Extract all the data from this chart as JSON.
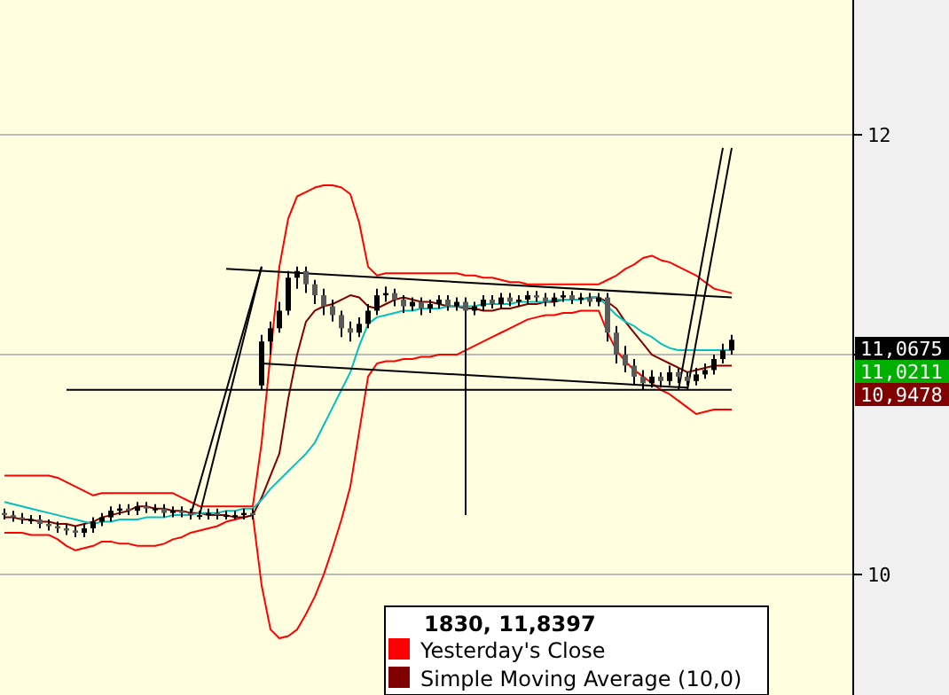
{
  "chart_data": {
    "type": "candlestick",
    "annotations": [
      "1830, 11,8397",
      "11,0675",
      "11,0211",
      "10,9478"
    ],
    "categories": [
      null,
      null,
      null,
      null,
      null,
      null,
      null,
      null,
      null,
      null,
      null,
      null,
      null,
      null,
      null,
      null,
      null,
      null,
      null,
      null,
      null,
      null,
      null,
      null,
      null,
      null,
      null,
      null,
      null,
      null,
      null,
      null,
      null,
      null,
      null,
      null,
      null,
      null,
      null,
      null,
      null,
      null,
      null,
      null,
      null,
      null,
      null,
      null,
      null,
      null,
      null,
      null,
      null,
      null,
      null,
      null,
      null,
      null,
      null,
      null,
      null,
      null,
      null,
      null,
      null,
      null,
      null,
      null,
      null,
      null,
      null,
      null,
      null,
      null,
      null,
      null,
      null,
      null,
      null,
      null,
      null,
      null,
      null
    ],
    "ohlc": [
      [
        10.28,
        10.3,
        10.25,
        10.27
      ],
      [
        10.27,
        10.29,
        10.24,
        10.26
      ],
      [
        10.26,
        10.28,
        10.23,
        10.25
      ],
      [
        10.25,
        10.27,
        10.23,
        10.25
      ],
      [
        10.25,
        10.27,
        10.21,
        10.23
      ],
      [
        10.23,
        10.25,
        10.2,
        10.22
      ],
      [
        10.22,
        10.24,
        10.19,
        10.21
      ],
      [
        10.21,
        10.23,
        10.18,
        10.2
      ],
      [
        10.2,
        10.22,
        10.17,
        10.19
      ],
      [
        10.19,
        10.23,
        10.17,
        10.21
      ],
      [
        10.21,
        10.26,
        10.19,
        10.24
      ],
      [
        10.24,
        10.28,
        10.22,
        10.26
      ],
      [
        10.26,
        10.31,
        10.24,
        10.29
      ],
      [
        10.29,
        10.32,
        10.27,
        10.3
      ],
      [
        10.3,
        10.32,
        10.27,
        10.29
      ],
      [
        10.29,
        10.33,
        10.27,
        10.31
      ],
      [
        10.31,
        10.33,
        10.28,
        10.3
      ],
      [
        10.3,
        10.32,
        10.28,
        10.3
      ],
      [
        10.3,
        10.32,
        10.26,
        10.28
      ],
      [
        10.28,
        10.31,
        10.26,
        10.29
      ],
      [
        10.29,
        10.31,
        10.26,
        10.28
      ],
      [
        10.28,
        10.3,
        10.25,
        10.27
      ],
      [
        10.27,
        10.29,
        10.25,
        10.27
      ],
      [
        10.27,
        10.3,
        10.25,
        10.28
      ],
      [
        10.28,
        10.3,
        10.25,
        10.27
      ],
      [
        10.27,
        10.29,
        10.25,
        10.27
      ],
      [
        10.27,
        10.29,
        10.25,
        10.27
      ],
      [
        10.27,
        10.3,
        10.25,
        10.28
      ],
      [
        10.28,
        10.3,
        10.25,
        10.27
      ],
      [
        10.86,
        11.09,
        10.84,
        11.06
      ],
      [
        11.06,
        11.15,
        11.0,
        11.12
      ],
      [
        11.12,
        11.24,
        11.1,
        11.2
      ],
      [
        11.2,
        11.38,
        11.18,
        11.35
      ],
      [
        11.35,
        11.4,
        11.3,
        11.38
      ],
      [
        11.38,
        11.4,
        11.28,
        11.32
      ],
      [
        11.32,
        11.34,
        11.23,
        11.27
      ],
      [
        11.27,
        11.3,
        11.18,
        11.22
      ],
      [
        11.22,
        11.25,
        11.15,
        11.18
      ],
      [
        11.18,
        11.2,
        11.08,
        11.12
      ],
      [
        11.12,
        11.15,
        11.06,
        11.1
      ],
      [
        11.1,
        11.17,
        11.08,
        11.14
      ],
      [
        11.14,
        11.23,
        11.12,
        11.2
      ],
      [
        11.2,
        11.3,
        11.18,
        11.27
      ],
      [
        11.27,
        11.31,
        11.24,
        11.28
      ],
      [
        11.28,
        11.3,
        11.22,
        11.25
      ],
      [
        11.25,
        11.27,
        11.19,
        11.22
      ],
      [
        11.22,
        11.26,
        11.2,
        11.24
      ],
      [
        11.24,
        11.26,
        11.18,
        11.21
      ],
      [
        11.21,
        11.25,
        11.19,
        11.23
      ],
      [
        11.23,
        11.27,
        11.21,
        11.25
      ],
      [
        11.25,
        11.27,
        11.2,
        11.22
      ],
      [
        11.22,
        11.26,
        11.2,
        11.24
      ],
      [
        11.24,
        11.26,
        10.27,
        11.2
      ],
      [
        11.2,
        11.24,
        11.18,
        11.22
      ],
      [
        11.22,
        11.27,
        11.2,
        11.25
      ],
      [
        11.25,
        11.27,
        11.21,
        11.23
      ],
      [
        11.23,
        11.28,
        11.21,
        11.26
      ],
      [
        11.26,
        11.28,
        11.22,
        11.24
      ],
      [
        11.24,
        11.27,
        11.22,
        11.25
      ],
      [
        11.25,
        11.29,
        11.23,
        11.27
      ],
      [
        11.27,
        11.29,
        11.24,
        11.26
      ],
      [
        11.26,
        11.28,
        11.22,
        11.24
      ],
      [
        11.24,
        11.28,
        11.22,
        11.26
      ],
      [
        11.26,
        11.29,
        11.24,
        11.27
      ],
      [
        11.27,
        11.29,
        11.23,
        11.25
      ],
      [
        11.25,
        11.28,
        11.23,
        11.26
      ],
      [
        11.26,
        11.28,
        11.22,
        11.24
      ],
      [
        11.24,
        11.28,
        11.22,
        11.26
      ],
      [
        11.26,
        11.28,
        11.06,
        11.1
      ],
      [
        11.1,
        11.13,
        10.96,
        11.0
      ],
      [
        11.0,
        11.04,
        10.92,
        10.95
      ],
      [
        10.95,
        10.98,
        10.86,
        10.9
      ],
      [
        10.9,
        10.93,
        10.84,
        10.87
      ],
      [
        10.87,
        10.93,
        10.85,
        10.9
      ],
      [
        10.9,
        10.92,
        10.85,
        10.88
      ],
      [
        10.88,
        10.95,
        10.86,
        10.92
      ],
      [
        10.92,
        10.94,
        10.87,
        10.9
      ],
      [
        10.9,
        10.92,
        10.86,
        10.88
      ],
      [
        10.88,
        10.94,
        10.86,
        10.91
      ],
      [
        10.91,
        10.96,
        10.89,
        10.93
      ],
      [
        10.93,
        11.0,
        10.91,
        10.98
      ],
      [
        10.98,
        11.05,
        10.96,
        11.02
      ],
      [
        11.02,
        11.09,
        11.0,
        11.0675
      ]
    ],
    "series": [
      {
        "type": "line",
        "name": "Yesterday's Close",
        "color": "#ff0000",
        "values": [
          10.45,
          10.45,
          10.45,
          10.45,
          10.45,
          10.45,
          10.44,
          10.42,
          10.4,
          10.38,
          10.36,
          10.37,
          10.37,
          10.37,
          10.37,
          10.37,
          10.37,
          10.37,
          10.37,
          10.37,
          10.35,
          10.33,
          10.31,
          10.31,
          10.31,
          10.31,
          10.31,
          10.31,
          10.31,
          10.6,
          11.0,
          11.4,
          11.62,
          11.72,
          11.74,
          11.76,
          11.77,
          11.77,
          11.76,
          11.73,
          11.6,
          11.4,
          11.36,
          11.37,
          11.37,
          11.37,
          11.37,
          11.37,
          11.37,
          11.37,
          11.37,
          11.37,
          11.36,
          11.36,
          11.35,
          11.35,
          11.34,
          11.33,
          11.33,
          11.32,
          11.32,
          11.32,
          11.32,
          11.32,
          11.32,
          11.32,
          11.32,
          11.32,
          11.34,
          11.36,
          11.39,
          11.41,
          11.44,
          11.45,
          11.43,
          11.42,
          11.4,
          11.38,
          11.36,
          11.33,
          11.3,
          11.29,
          11.28
        ]
      },
      {
        "type": "line",
        "color": "#ff0000",
        "values": [
          10.19,
          10.19,
          10.19,
          10.18,
          10.18,
          10.18,
          10.16,
          10.13,
          10.11,
          10.12,
          10.13,
          10.15,
          10.15,
          10.14,
          10.14,
          10.13,
          10.13,
          10.13,
          10.14,
          10.16,
          10.17,
          10.19,
          10.2,
          10.21,
          10.22,
          10.24,
          10.25,
          10.26,
          10.27,
          9.95,
          9.75,
          9.71,
          9.72,
          9.75,
          9.82,
          9.9,
          10.0,
          10.12,
          10.25,
          10.4,
          10.65,
          10.9,
          10.96,
          10.97,
          10.97,
          10.98,
          10.98,
          10.99,
          10.99,
          11.0,
          11.0,
          11.0,
          11.02,
          11.04,
          11.06,
          11.08,
          11.1,
          11.12,
          11.14,
          11.16,
          11.17,
          11.18,
          11.18,
          11.19,
          11.19,
          11.2,
          11.2,
          11.2,
          11.1,
          11.02,
          10.97,
          10.93,
          10.9,
          10.87,
          10.84,
          10.82,
          10.79,
          10.76,
          10.73,
          10.74,
          10.75,
          10.75,
          10.75
        ]
      },
      {
        "type": "line",
        "name": "Simple Moving Average (10,0)",
        "color": "#800000",
        "values": [
          10.26,
          10.26,
          10.25,
          10.25,
          10.24,
          10.24,
          10.23,
          10.23,
          10.22,
          10.23,
          10.24,
          10.26,
          10.27,
          10.28,
          10.29,
          10.31,
          10.31,
          10.3,
          10.3,
          10.29,
          10.29,
          10.28,
          10.28,
          10.27,
          10.27,
          10.27,
          10.26,
          10.26,
          10.27,
          10.35,
          10.45,
          10.55,
          10.8,
          11.0,
          11.15,
          11.2,
          11.22,
          11.23,
          11.25,
          11.27,
          11.26,
          11.22,
          11.21,
          11.23,
          11.25,
          11.26,
          11.25,
          11.24,
          11.24,
          11.23,
          11.22,
          11.22,
          11.21,
          11.21,
          11.2,
          11.2,
          11.21,
          11.21,
          11.22,
          11.23,
          11.23,
          11.24,
          11.24,
          11.25,
          11.25,
          11.25,
          11.26,
          11.26,
          11.24,
          11.21,
          11.15,
          11.1,
          11.05,
          11.0,
          10.98,
          10.96,
          10.94,
          10.92,
          10.93,
          10.94,
          10.95,
          10.95,
          10.95
        ]
      },
      {
        "type": "line",
        "color": "#00c0c0",
        "values": [
          10.33,
          10.32,
          10.31,
          10.3,
          10.29,
          10.28,
          10.27,
          10.26,
          10.25,
          10.24,
          10.23,
          10.24,
          10.24,
          10.25,
          10.25,
          10.25,
          10.26,
          10.26,
          10.26,
          10.27,
          10.27,
          10.27,
          10.28,
          10.28,
          10.28,
          10.29,
          10.29,
          10.3,
          10.3,
          10.34,
          10.39,
          10.43,
          10.47,
          10.51,
          10.55,
          10.6,
          10.68,
          10.76,
          10.84,
          10.92,
          11.04,
          11.14,
          11.17,
          11.18,
          11.19,
          11.2,
          11.2,
          11.21,
          11.21,
          11.21,
          11.22,
          11.22,
          11.22,
          11.22,
          11.23,
          11.23,
          11.23,
          11.23,
          11.24,
          11.24,
          11.24,
          11.24,
          11.25,
          11.25,
          11.25,
          11.25,
          11.26,
          11.26,
          11.22,
          11.18,
          11.15,
          11.13,
          11.1,
          11.08,
          11.05,
          11.03,
          11.02,
          11.02,
          11.02,
          11.02,
          11.02,
          11.02,
          11.02
        ]
      },
      {
        "type": "line",
        "color": "#000000",
        "values": [
          null,
          null,
          null,
          null,
          null,
          null,
          null,
          null,
          null,
          null,
          null,
          null,
          null,
          null,
          null,
          null,
          null,
          null,
          null,
          null,
          null,
          10.27,
          null,
          null,
          null,
          null,
          null,
          null,
          null,
          11.4,
          null,
          null,
          null,
          null,
          null,
          null,
          null,
          null,
          null,
          null,
          null,
          null,
          null,
          null,
          null,
          null,
          null,
          null,
          null,
          null,
          null,
          null,
          null,
          null,
          null,
          null,
          null,
          null,
          null,
          null,
          null,
          null,
          null,
          null,
          null,
          null,
          null,
          null,
          null,
          null,
          null,
          null,
          null,
          null,
          null,
          null,
          null,
          null,
          null,
          null,
          null,
          null,
          null
        ]
      },
      {
        "type": "line",
        "color": "#000000",
        "values": [
          null,
          null,
          null,
          null,
          null,
          null,
          null,
          null,
          null,
          null,
          null,
          null,
          null,
          null,
          null,
          null,
          null,
          null,
          null,
          null,
          null,
          null,
          10.27,
          null,
          null,
          null,
          null,
          null,
          null,
          11.4,
          null,
          null,
          null,
          null,
          null,
          null,
          null,
          null,
          null,
          null,
          null,
          null,
          null,
          null,
          null,
          null,
          null,
          null,
          null,
          null,
          null,
          null,
          null,
          null,
          null,
          null,
          null,
          null,
          null,
          null,
          null,
          null,
          null,
          null,
          null,
          null,
          null,
          null,
          null,
          null,
          null,
          null,
          null,
          null,
          null,
          null,
          null,
          null,
          null,
          null,
          null,
          null,
          null
        ]
      },
      {
        "type": "line",
        "color": "#000000",
        "values": [
          null,
          null,
          null,
          null,
          null,
          null,
          null,
          null,
          null,
          null,
          null,
          null,
          null,
          null,
          null,
          null,
          null,
          null,
          null,
          null,
          null,
          null,
          null,
          null,
          null,
          11.39,
          null,
          null,
          null,
          null,
          null,
          null,
          null,
          null,
          null,
          null,
          null,
          null,
          null,
          null,
          null,
          null,
          null,
          null,
          null,
          null,
          null,
          null,
          null,
          null,
          null,
          null,
          null,
          null,
          null,
          null,
          null,
          null,
          null,
          null,
          null,
          null,
          null,
          null,
          null,
          null,
          null,
          null,
          null,
          null,
          null,
          null,
          null,
          null,
          null,
          null,
          null,
          null,
          null,
          null,
          null,
          null,
          11.26
        ]
      },
      {
        "type": "line",
        "color": "#000000",
        "values": [
          null,
          null,
          null,
          null,
          null,
          null,
          null,
          null,
          null,
          null,
          null,
          null,
          null,
          null,
          null,
          null,
          null,
          null,
          null,
          null,
          null,
          null,
          null,
          null,
          null,
          null,
          null,
          null,
          null,
          10.96,
          null,
          null,
          null,
          null,
          null,
          null,
          null,
          null,
          null,
          null,
          null,
          null,
          null,
          null,
          null,
          null,
          null,
          null,
          null,
          null,
          null,
          null,
          null,
          null,
          null,
          null,
          null,
          null,
          null,
          null,
          null,
          null,
          null,
          null,
          null,
          null,
          null,
          null,
          null,
          null,
          null,
          null,
          null,
          null,
          null,
          null,
          null,
          10.85,
          null,
          null,
          null,
          null,
          null
        ]
      },
      {
        "type": "line",
        "color": "#000000",
        "values": [
          null,
          null,
          null,
          null,
          null,
          null,
          null,
          10.84,
          null,
          null,
          null,
          null,
          null,
          null,
          null,
          null,
          null,
          null,
          null,
          null,
          null,
          null,
          null,
          null,
          null,
          null,
          null,
          null,
          null,
          null,
          null,
          null,
          null,
          null,
          null,
          null,
          null,
          null,
          null,
          null,
          null,
          null,
          null,
          null,
          null,
          null,
          null,
          null,
          null,
          null,
          null,
          null,
          null,
          null,
          null,
          null,
          null,
          null,
          null,
          null,
          null,
          null,
          null,
          null,
          null,
          null,
          null,
          null,
          null,
          null,
          null,
          null,
          null,
          null,
          null,
          null,
          null,
          null,
          null,
          null,
          null,
          null,
          10.84
        ]
      },
      {
        "type": "line",
        "color": "#000000",
        "values": [
          null,
          null,
          null,
          null,
          null,
          null,
          null,
          null,
          null,
          null,
          null,
          null,
          null,
          null,
          null,
          null,
          null,
          null,
          null,
          null,
          null,
          null,
          null,
          null,
          null,
          null,
          null,
          null,
          null,
          null,
          null,
          null,
          null,
          null,
          null,
          null,
          null,
          null,
          null,
          null,
          null,
          null,
          null,
          null,
          null,
          null,
          null,
          null,
          null,
          null,
          null,
          null,
          null,
          null,
          null,
          null,
          null,
          null,
          null,
          null,
          null,
          null,
          null,
          null,
          null,
          null,
          null,
          null,
          null,
          null,
          null,
          null,
          null,
          null,
          null,
          null,
          10.84,
          null,
          null,
          null,
          null,
          11.94,
          null
        ]
      },
      {
        "type": "line",
        "color": "#000000",
        "values": [
          null,
          null,
          null,
          null,
          null,
          null,
          null,
          null,
          null,
          null,
          null,
          null,
          null,
          null,
          null,
          null,
          null,
          null,
          null,
          null,
          null,
          null,
          null,
          null,
          null,
          null,
          null,
          null,
          null,
          null,
          null,
          null,
          null,
          null,
          null,
          null,
          null,
          null,
          null,
          null,
          null,
          null,
          null,
          null,
          null,
          null,
          null,
          null,
          null,
          null,
          null,
          null,
          null,
          null,
          null,
          null,
          null,
          null,
          null,
          null,
          null,
          null,
          null,
          null,
          null,
          null,
          null,
          null,
          null,
          null,
          null,
          null,
          null,
          null,
          null,
          null,
          null,
          10.84,
          null,
          null,
          null,
          null,
          11.94
        ]
      }
    ],
    "ylim": [
      9.452,
      12.613
    ],
    "yticks": [
      10,
      {
        "value": 11,
        "label": null
      },
      12
    ],
    "tick_labels": "y",
    "grid": "y",
    "legend": "bottom"
  }
}
